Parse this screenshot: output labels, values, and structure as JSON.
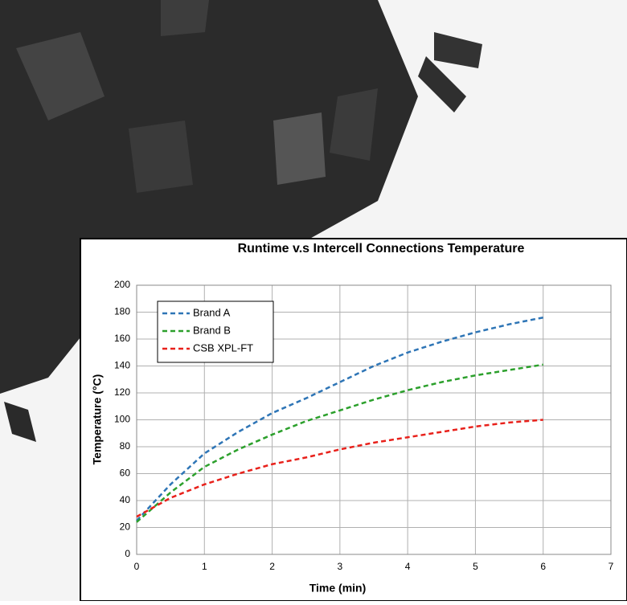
{
  "chart_data": {
    "type": "line",
    "title": "Runtime v.s Intercell Connections Temperature",
    "x_label": "Time (min)",
    "y_label": "Temperature (°C)",
    "x": [
      0,
      0.5,
      1,
      1.5,
      2,
      2.5,
      3,
      3.5,
      4,
      4.5,
      5,
      5.5,
      6
    ],
    "series": [
      {
        "name": "Brand A",
        "color": "#2e75b6",
        "values": [
          25,
          52,
          75,
          91,
          105,
          116,
          128,
          140,
          150,
          158,
          165,
          171,
          176
        ]
      },
      {
        "name": "Brand B",
        "color": "#2ca02c",
        "values": [
          24,
          46,
          65,
          78,
          89,
          99,
          107,
          115,
          122,
          128,
          133,
          137,
          141
        ]
      },
      {
        "name": "CSB XPL-FT",
        "color": "#e8211b",
        "values": [
          28,
          42,
          52,
          60,
          67,
          72,
          78,
          83,
          87,
          91,
          95,
          98,
          100
        ]
      }
    ],
    "xlim": [
      0,
      7
    ],
    "xticks": [
      0,
      1,
      2,
      3,
      4,
      5,
      6,
      7
    ],
    "ylim": [
      0,
      200
    ],
    "yticks": [
      0,
      20,
      40,
      60,
      80,
      100,
      120,
      140,
      160,
      180,
      200
    ],
    "grid": true,
    "legend": "upper left"
  }
}
